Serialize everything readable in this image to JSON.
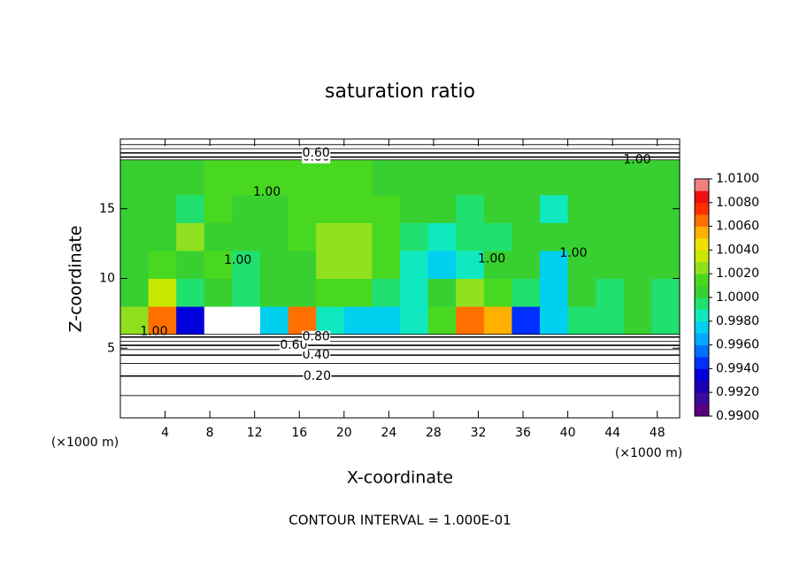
{
  "chart_data": {
    "type": "contour",
    "title": "saturation ratio",
    "xlabel": "X-coordinate",
    "ylabel": "Z-coordinate",
    "unit_labels": [
      "(×1000 m)",
      "(×1000 m)"
    ],
    "footer": "CONTOUR INTERVAL = 1.000E-01",
    "xlim": [
      0,
      50
    ],
    "ylim": [
      0,
      20
    ],
    "xticks": [
      4,
      8,
      12,
      16,
      20,
      24,
      28,
      32,
      36,
      40,
      44,
      48
    ],
    "yticks": [
      5,
      10,
      15
    ],
    "x_edges": [
      0,
      2.5,
      5,
      7.5,
      10,
      12.5,
      15,
      17.5,
      20,
      22.5,
      25,
      27.5,
      30,
      32.5,
      35,
      37.5,
      40,
      42.5,
      45,
      47.5,
      50
    ],
    "z_edges": [
      6,
      8,
      10,
      12,
      14,
      16,
      18.5
    ],
    "values": [
      [
        1.002,
        1.006,
        0.993,
        0.985,
        0.985,
        0.997,
        1.006,
        0.998,
        0.997,
        0.997,
        0.998,
        1.001,
        1.006,
        1.005,
        0.994,
        0.997,
        0.999,
        0.999,
        1.0,
        0.999
      ],
      [
        1.0,
        1.003,
        0.999,
        1.0,
        0.999,
        1.0,
        1.0,
        1.001,
        1.001,
        0.999,
        0.998,
        1.0,
        1.002,
        1.001,
        0.999,
        0.997,
        1.0,
        0.999,
        1.0,
        0.999
      ],
      [
        1.0,
        1.001,
        1.0,
        1.001,
        0.999,
        1.0,
        1.0,
        1.002,
        1.002,
        1.001,
        0.998,
        0.997,
        0.998,
        1.0,
        1.0,
        0.997,
        1.0,
        1.0,
        1.0,
        1.0
      ],
      [
        1.0,
        1.0,
        1.002,
        1.0,
        1.0,
        1.0,
        1.001,
        1.002,
        1.002,
        1.001,
        0.999,
        0.998,
        0.999,
        0.999,
        1.0,
        1.0,
        1.0,
        1.0,
        1.0,
        1.0
      ],
      [
        1.0,
        1.0,
        0.999,
        1.001,
        1.0,
        1.0,
        1.001,
        1.001,
        1.001,
        1.001,
        1.0,
        1.0,
        0.999,
        1.0,
        1.0,
        0.998,
        1.0,
        1.0,
        1.0,
        1.0
      ],
      [
        1.0,
        1.0,
        1.0,
        1.001,
        1.001,
        1.001,
        1.001,
        1.001,
        1.001,
        1.0,
        1.0,
        1.0,
        1.0,
        1.0,
        1.0,
        1.0,
        1.0,
        1.0,
        1.0,
        1.0
      ]
    ],
    "colorbar": {
      "lim": [
        0.99,
        1.01
      ],
      "ticks": [
        {
          "value": 0.99,
          "label": "0.9900"
        },
        {
          "value": 0.992,
          "label": "0.9920"
        },
        {
          "value": 0.994,
          "label": "0.9940"
        },
        {
          "value": 0.996,
          "label": "0.9960"
        },
        {
          "value": 0.998,
          "label": "0.9980"
        },
        {
          "value": 1.0,
          "label": "1.0000"
        },
        {
          "value": 1.002,
          "label": "1.0020"
        },
        {
          "value": 1.004,
          "label": "1.0040"
        },
        {
          "value": 1.006,
          "label": "1.0060"
        },
        {
          "value": 1.008,
          "label": "1.0080"
        },
        {
          "value": 1.01,
          "label": "1.0100"
        }
      ],
      "colors": [
        "#5a007f",
        "#3a0a9a",
        "#1a00b4",
        "#0000dc",
        "#0030ff",
        "#0070ff",
        "#00a8ff",
        "#00d0f0",
        "#10e8c0",
        "#20e070",
        "#38d030",
        "#48d820",
        "#90e020",
        "#c8e800",
        "#f0e000",
        "#ffb000",
        "#ff7000",
        "#ff3000",
        "#f01010",
        "#f08080"
      ]
    },
    "contours": [
      {
        "level": 0.1,
        "z": 1.6
      },
      {
        "level": 0.2,
        "z": 3.0,
        "label": "0.20",
        "label_x": 17.6
      },
      {
        "level": 0.3,
        "z": 3.9
      },
      {
        "level": 0.4,
        "z": 4.5,
        "label": "0.40",
        "label_x": 17.5
      },
      {
        "level": 0.5,
        "z": 4.9
      },
      {
        "level": 0.6,
        "z": 5.2,
        "label": "0.60",
        "label_x": 15.5
      },
      {
        "level": 0.7,
        "z": 5.5
      },
      {
        "level": 0.8,
        "z": 5.8,
        "label": "0.80",
        "label_x": 17.5
      },
      {
        "level": 0.9,
        "z": 6.0
      },
      {
        "level": 0.9,
        "z": 18.5
      },
      {
        "level": 0.8,
        "z": 18.7,
        "label": "0.80",
        "label_x": 17.5
      },
      {
        "level": 0.6,
        "z": 19.0,
        "label": "0.60",
        "label_x": 17.5
      },
      {
        "level": 0.4,
        "z": 19.3
      },
      {
        "level": 0.2,
        "z": 19.6
      }
    ],
    "annotations": [
      {
        "text": "1.00",
        "x": 3,
        "z": 6.2
      },
      {
        "text": "1.00",
        "x": 10.5,
        "z": 11.3
      },
      {
        "text": "1.00",
        "x": 13.1,
        "z": 16.2
      },
      {
        "text": "1.00",
        "x": 33.2,
        "z": 11.4
      },
      {
        "text": "1.00",
        "x": 40.5,
        "z": 11.8
      },
      {
        "text": "1.00",
        "x": 46.2,
        "z": 18.5
      }
    ]
  }
}
